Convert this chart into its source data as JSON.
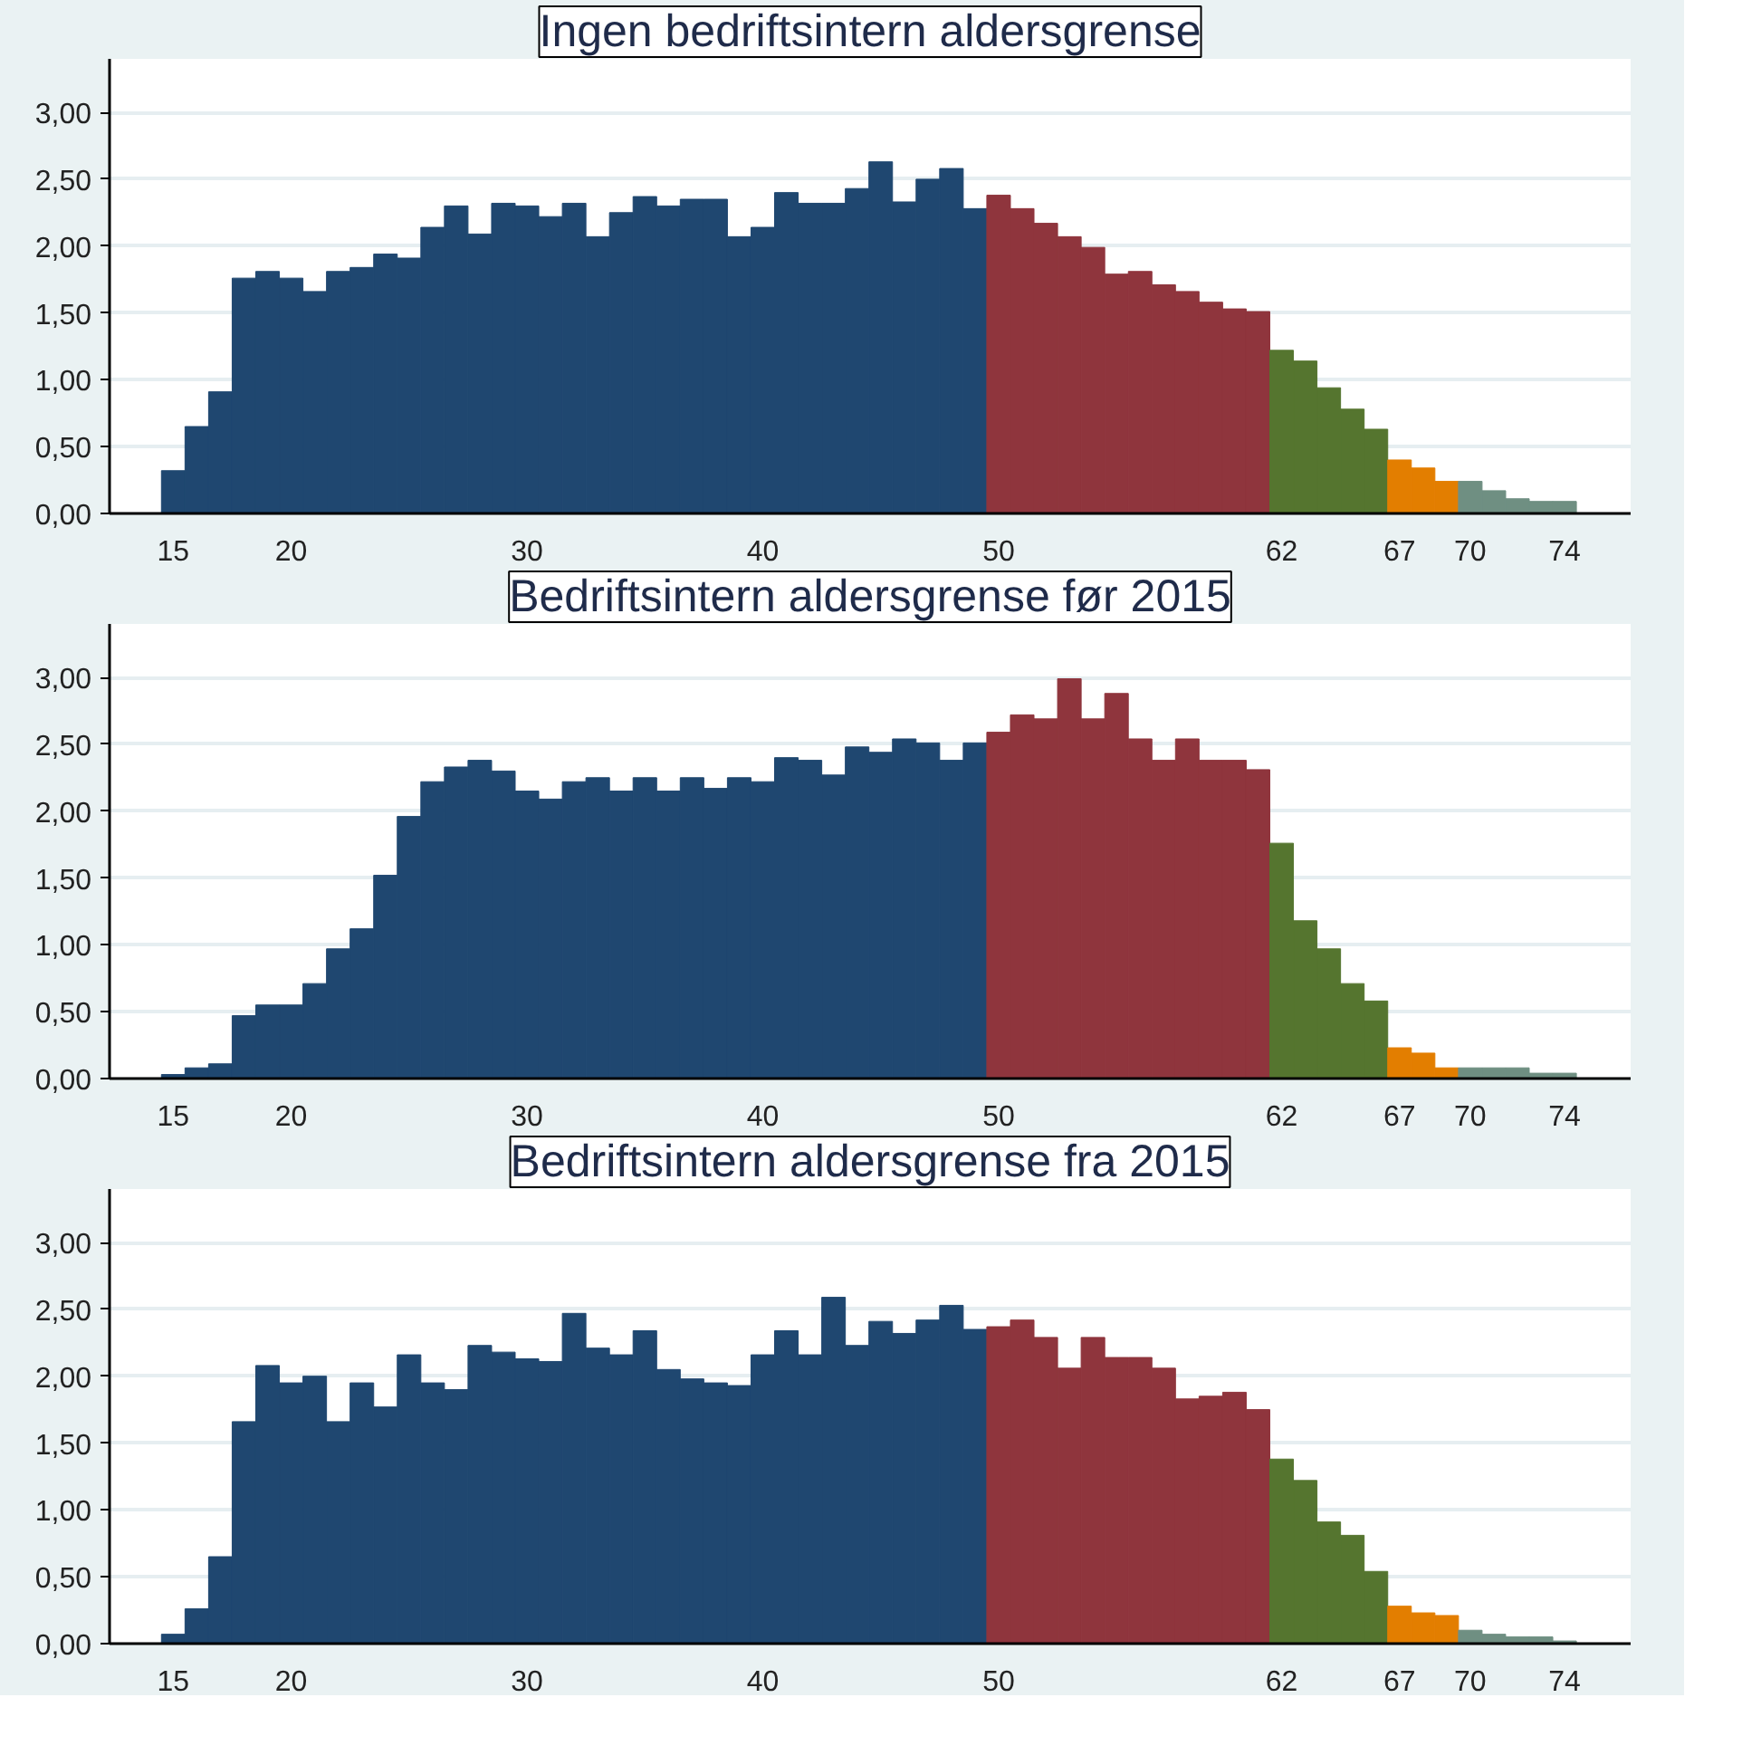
{
  "chart_data": [
    {
      "type": "histogram",
      "title": "Ingen bedriftsintern aldersgrense",
      "bins": [
        14.5,
        15.5,
        16.5,
        17.5,
        18.5,
        19.5,
        20.5,
        21.5,
        22.5,
        23.5,
        24.5,
        25.5,
        26.5,
        27.5,
        28.5,
        29.5,
        30.5,
        31.5,
        32.5,
        33.5,
        34.5,
        35.5,
        36.5,
        37.5,
        38.5,
        39.5,
        40.5,
        41.5,
        42.5,
        43.5,
        44.5,
        45.5,
        46.5,
        47.5,
        48.5,
        49.5,
        50.5,
        51.5,
        52.5,
        53.5,
        54.5,
        55.5,
        56.5,
        57.5,
        58.5,
        59.5,
        60.5,
        61.5,
        62.5,
        63.5,
        64.5,
        65.5,
        66.5,
        67.5,
        68.5,
        69.5,
        70.5,
        71.5,
        72.5,
        73.5,
        74.5
      ],
      "values": [
        0.32,
        0.65,
        0.91,
        1.76,
        1.81,
        1.76,
        1.66,
        1.81,
        1.84,
        1.94,
        1.91,
        2.14,
        2.3,
        2.09,
        2.32,
        2.3,
        2.22,
        2.32,
        2.07,
        2.25,
        2.37,
        2.3,
        2.35,
        2.35,
        2.07,
        2.14,
        2.4,
        2.32,
        2.32,
        2.43,
        2.63,
        2.33,
        2.5,
        2.58,
        2.28,
        2.38,
        2.28,
        2.17,
        2.07,
        1.99,
        1.79,
        1.81,
        1.71,
        1.66,
        1.58,
        1.53,
        1.51,
        1.22,
        1.14,
        0.94,
        0.78,
        0.63,
        0.4,
        0.34,
        0.24,
        0.24,
        0.17,
        0.11,
        0.09,
        0.09
      ],
      "colors": [
        "#1f4770",
        "#1f4770",
        "#1f4770",
        "#1f4770",
        "#1f4770",
        "#1f4770",
        "#1f4770",
        "#1f4770",
        "#1f4770",
        "#1f4770",
        "#1f4770",
        "#1f4770",
        "#1f4770",
        "#1f4770",
        "#1f4770",
        "#1f4770",
        "#1f4770",
        "#1f4770",
        "#1f4770",
        "#1f4770",
        "#1f4770",
        "#1f4770",
        "#1f4770",
        "#1f4770",
        "#1f4770",
        "#1f4770",
        "#1f4770",
        "#1f4770",
        "#1f4770",
        "#1f4770",
        "#1f4770",
        "#1f4770",
        "#1f4770",
        "#1f4770",
        "#1f4770",
        "#8f353d",
        "#8f353d",
        "#8f353d",
        "#8f353d",
        "#8f353d",
        "#8f353d",
        "#8f353d",
        "#8f353d",
        "#8f353d",
        "#8f353d",
        "#8f353d",
        "#8f353d",
        "#55752f",
        "#55752f",
        "#55752f",
        "#55752f",
        "#55752f",
        "#e37e00",
        "#e37e00",
        "#e37e00",
        "#6f8f82",
        "#6f8f82",
        "#6f8f82",
        "#6f8f82",
        "#6f8f82"
      ],
      "xlim": [
        12.3,
        76.8
      ],
      "xticks": [
        15,
        20,
        30,
        40,
        50,
        62,
        67,
        70,
        74
      ],
      "ylim": [
        0,
        3.4
      ],
      "yticks": [
        {
          "value": 0,
          "label": "0,00"
        },
        {
          "value": 0.5,
          "label": "0,50"
        },
        {
          "value": 1,
          "label": "1,00"
        },
        {
          "value": 1.5,
          "label": "1,50"
        },
        {
          "value": 2,
          "label": "2,00"
        },
        {
          "value": 2.5,
          "label": "2,50"
        },
        {
          "value": 3,
          "label": "3,00"
        }
      ],
      "grid": "y"
    },
    {
      "type": "histogram",
      "title": "Bedriftsintern aldersgrense før 2015",
      "bins": [
        14.5,
        15.5,
        16.5,
        17.5,
        18.5,
        19.5,
        20.5,
        21.5,
        22.5,
        23.5,
        24.5,
        25.5,
        26.5,
        27.5,
        28.5,
        29.5,
        30.5,
        31.5,
        32.5,
        33.5,
        34.5,
        35.5,
        36.5,
        37.5,
        38.5,
        39.5,
        40.5,
        41.5,
        42.5,
        43.5,
        44.5,
        45.5,
        46.5,
        47.5,
        48.5,
        49.5,
        50.5,
        51.5,
        52.5,
        53.5,
        54.5,
        55.5,
        56.5,
        57.5,
        58.5,
        59.5,
        60.5,
        61.5,
        62.5,
        63.5,
        64.5,
        65.5,
        66.5,
        67.5,
        68.5,
        69.5,
        70.5,
        71.5,
        72.5,
        73.5,
        74.5
      ],
      "values": [
        0.03,
        0.08,
        0.11,
        0.47,
        0.55,
        0.55,
        0.71,
        0.97,
        1.12,
        1.52,
        1.96,
        2.22,
        2.33,
        2.38,
        2.3,
        2.15,
        2.09,
        2.22,
        2.25,
        2.15,
        2.25,
        2.15,
        2.25,
        2.17,
        2.25,
        2.22,
        2.4,
        2.38,
        2.27,
        2.48,
        2.44,
        2.54,
        2.51,
        2.38,
        2.51,
        2.59,
        2.72,
        2.69,
        2.99,
        2.69,
        2.88,
        2.54,
        2.38,
        2.54,
        2.38,
        2.38,
        2.31,
        1.76,
        1.18,
        0.97,
        0.71,
        0.58,
        0.23,
        0.19,
        0.08,
        0.08,
        0.08,
        0.08,
        0.04,
        0.04
      ],
      "colors": [
        "#1f4770",
        "#1f4770",
        "#1f4770",
        "#1f4770",
        "#1f4770",
        "#1f4770",
        "#1f4770",
        "#1f4770",
        "#1f4770",
        "#1f4770",
        "#1f4770",
        "#1f4770",
        "#1f4770",
        "#1f4770",
        "#1f4770",
        "#1f4770",
        "#1f4770",
        "#1f4770",
        "#1f4770",
        "#1f4770",
        "#1f4770",
        "#1f4770",
        "#1f4770",
        "#1f4770",
        "#1f4770",
        "#1f4770",
        "#1f4770",
        "#1f4770",
        "#1f4770",
        "#1f4770",
        "#1f4770",
        "#1f4770",
        "#1f4770",
        "#1f4770",
        "#1f4770",
        "#8f353d",
        "#8f353d",
        "#8f353d",
        "#8f353d",
        "#8f353d",
        "#8f353d",
        "#8f353d",
        "#8f353d",
        "#8f353d",
        "#8f353d",
        "#8f353d",
        "#8f353d",
        "#55752f",
        "#55752f",
        "#55752f",
        "#55752f",
        "#55752f",
        "#e37e00",
        "#e37e00",
        "#e37e00",
        "#6f8f82",
        "#6f8f82",
        "#6f8f82",
        "#6f8f82",
        "#6f8f82"
      ],
      "xlim": [
        12.3,
        76.8
      ],
      "xticks": [
        15,
        20,
        30,
        40,
        50,
        62,
        67,
        70,
        74
      ],
      "ylim": [
        0,
        3.4
      ],
      "yticks": [
        {
          "value": 0,
          "label": "0,00"
        },
        {
          "value": 0.5,
          "label": "0,50"
        },
        {
          "value": 1,
          "label": "1,00"
        },
        {
          "value": 1.5,
          "label": "1,50"
        },
        {
          "value": 2,
          "label": "2,00"
        },
        {
          "value": 2.5,
          "label": "2,50"
        },
        {
          "value": 3,
          "label": "3,00"
        }
      ],
      "grid": "y"
    },
    {
      "type": "histogram",
      "title": "Bedriftsintern aldersgrense fra 2015",
      "bins": [
        14.5,
        15.5,
        16.5,
        17.5,
        18.5,
        19.5,
        20.5,
        21.5,
        22.5,
        23.5,
        24.5,
        25.5,
        26.5,
        27.5,
        28.5,
        29.5,
        30.5,
        31.5,
        32.5,
        33.5,
        34.5,
        35.5,
        36.5,
        37.5,
        38.5,
        39.5,
        40.5,
        41.5,
        42.5,
        43.5,
        44.5,
        45.5,
        46.5,
        47.5,
        48.5,
        49.5,
        50.5,
        51.5,
        52.5,
        53.5,
        54.5,
        55.5,
        56.5,
        57.5,
        58.5,
        59.5,
        60.5,
        61.5,
        62.5,
        63.5,
        64.5,
        65.5,
        66.5,
        67.5,
        68.5,
        69.5,
        70.5,
        71.5,
        72.5,
        73.5,
        74.5
      ],
      "values": [
        0.07,
        0.26,
        0.65,
        1.66,
        2.08,
        1.95,
        2.0,
        1.66,
        1.95,
        1.77,
        2.16,
        1.95,
        1.9,
        2.23,
        2.18,
        2.13,
        2.11,
        2.47,
        2.21,
        2.16,
        2.34,
        2.05,
        1.98,
        1.95,
        1.93,
        2.16,
        2.34,
        2.16,
        2.59,
        2.23,
        2.41,
        2.32,
        2.42,
        2.53,
        2.35,
        2.37,
        2.42,
        2.29,
        2.06,
        2.29,
        2.14,
        2.14,
        2.06,
        1.83,
        1.85,
        1.88,
        1.75,
        1.38,
        1.22,
        0.91,
        0.81,
        0.54,
        0.28,
        0.23,
        0.21,
        0.1,
        0.07,
        0.05,
        0.05,
        0.02
      ],
      "colors": [
        "#1f4770",
        "#1f4770",
        "#1f4770",
        "#1f4770",
        "#1f4770",
        "#1f4770",
        "#1f4770",
        "#1f4770",
        "#1f4770",
        "#1f4770",
        "#1f4770",
        "#1f4770",
        "#1f4770",
        "#1f4770",
        "#1f4770",
        "#1f4770",
        "#1f4770",
        "#1f4770",
        "#1f4770",
        "#1f4770",
        "#1f4770",
        "#1f4770",
        "#1f4770",
        "#1f4770",
        "#1f4770",
        "#1f4770",
        "#1f4770",
        "#1f4770",
        "#1f4770",
        "#1f4770",
        "#1f4770",
        "#1f4770",
        "#1f4770",
        "#1f4770",
        "#1f4770",
        "#8f353d",
        "#8f353d",
        "#8f353d",
        "#8f353d",
        "#8f353d",
        "#8f353d",
        "#8f353d",
        "#8f353d",
        "#8f353d",
        "#8f353d",
        "#8f353d",
        "#8f353d",
        "#55752f",
        "#55752f",
        "#55752f",
        "#55752f",
        "#55752f",
        "#e37e00",
        "#e37e00",
        "#e37e00",
        "#6f8f82",
        "#6f8f82",
        "#6f8f82",
        "#6f8f82",
        "#6f8f82"
      ],
      "xlim": [
        12.3,
        76.8
      ],
      "xticks": [
        15,
        20,
        30,
        40,
        50,
        62,
        67,
        70,
        74
      ],
      "ylim": [
        0,
        3.4
      ],
      "yticks": [
        {
          "value": 0,
          "label": "0,00"
        },
        {
          "value": 0.5,
          "label": "0,50"
        },
        {
          "value": 1,
          "label": "1,00"
        },
        {
          "value": 1.5,
          "label": "1,50"
        },
        {
          "value": 2,
          "label": "2,00"
        },
        {
          "value": 2.5,
          "label": "2,50"
        },
        {
          "value": 3,
          "label": "3,00"
        }
      ],
      "grid": "y"
    }
  ]
}
